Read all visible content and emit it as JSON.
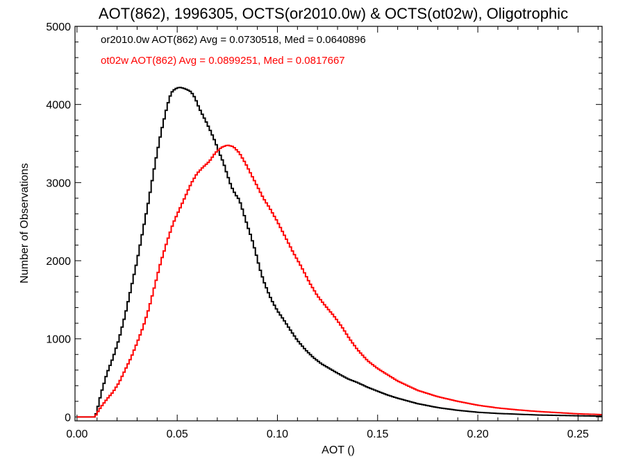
{
  "chart_data": {
    "type": "line",
    "title": "AOT(862), 1996305, OCTS(or2010.0w) & OCTS(ot02w), Oligotrophic",
    "xlabel": "AOT ()",
    "ylabel": "Number of Observations",
    "xlim": [
      -0.001,
      0.262
    ],
    "ylim": [
      -50,
      5000
    ],
    "xticks": [
      0.0,
      0.05,
      0.1,
      0.15,
      0.2,
      0.25
    ],
    "xtick_labels": [
      "0.00",
      "0.05",
      "0.10",
      "0.15",
      "0.20",
      "0.25"
    ],
    "yticks": [
      0,
      1000,
      2000,
      3000,
      4000,
      5000
    ],
    "ytick_labels": [
      "0",
      "1000",
      "2000",
      "3000",
      "4000",
      "5000"
    ],
    "bin_width": 0.001,
    "grid": false,
    "legend_position": "top-left",
    "series": [
      {
        "name": "or2010.0w AOT(862) Avg = 0.0730518, Med = 0.0640896",
        "color": "#000000",
        "style": "step",
        "points": [
          [
            0.0,
            0
          ],
          [
            0.005,
            0
          ],
          [
            0.009,
            0
          ],
          [
            0.01,
            80
          ],
          [
            0.012,
            300
          ],
          [
            0.015,
            560
          ],
          [
            0.018,
            760
          ],
          [
            0.021,
            1000
          ],
          [
            0.024,
            1300
          ],
          [
            0.027,
            1650
          ],
          [
            0.03,
            2000
          ],
          [
            0.033,
            2400
          ],
          [
            0.036,
            2800
          ],
          [
            0.039,
            3250
          ],
          [
            0.042,
            3650
          ],
          [
            0.045,
            3980
          ],
          [
            0.047,
            4150
          ],
          [
            0.049,
            4200
          ],
          [
            0.051,
            4220
          ],
          [
            0.053,
            4210
          ],
          [
            0.055,
            4190
          ],
          [
            0.057,
            4160
          ],
          [
            0.059,
            4080
          ],
          [
            0.061,
            3950
          ],
          [
            0.063,
            3850
          ],
          [
            0.065,
            3750
          ],
          [
            0.067,
            3640
          ],
          [
            0.069,
            3520
          ],
          [
            0.071,
            3380
          ],
          [
            0.073,
            3260
          ],
          [
            0.075,
            3100
          ],
          [
            0.077,
            2950
          ],
          [
            0.079,
            2850
          ],
          [
            0.081,
            2780
          ],
          [
            0.083,
            2620
          ],
          [
            0.085,
            2450
          ],
          [
            0.087,
            2300
          ],
          [
            0.089,
            2120
          ],
          [
            0.091,
            1920
          ],
          [
            0.093,
            1750
          ],
          [
            0.095,
            1620
          ],
          [
            0.097,
            1500
          ],
          [
            0.1,
            1360
          ],
          [
            0.103,
            1250
          ],
          [
            0.106,
            1130
          ],
          [
            0.11,
            980
          ],
          [
            0.114,
            860
          ],
          [
            0.118,
            760
          ],
          [
            0.122,
            680
          ],
          [
            0.126,
            620
          ],
          [
            0.13,
            560
          ],
          [
            0.135,
            490
          ],
          [
            0.14,
            440
          ],
          [
            0.145,
            380
          ],
          [
            0.15,
            330
          ],
          [
            0.155,
            280
          ],
          [
            0.16,
            240
          ],
          [
            0.17,
            170
          ],
          [
            0.18,
            120
          ],
          [
            0.19,
            85
          ],
          [
            0.2,
            60
          ],
          [
            0.21,
            45
          ],
          [
            0.22,
            35
          ],
          [
            0.23,
            25
          ],
          [
            0.24,
            20
          ],
          [
            0.25,
            15
          ],
          [
            0.262,
            10
          ]
        ]
      },
      {
        "name": "ot02w AOT(862) Avg = 0.0899251, Med = 0.0817667",
        "color": "#ff0000",
        "style": "step",
        "points": [
          [
            0.0,
            0
          ],
          [
            0.009,
            0
          ],
          [
            0.01,
            50
          ],
          [
            0.012,
            130
          ],
          [
            0.015,
            230
          ],
          [
            0.018,
            320
          ],
          [
            0.021,
            440
          ],
          [
            0.024,
            600
          ],
          [
            0.027,
            760
          ],
          [
            0.03,
            950
          ],
          [
            0.033,
            1150
          ],
          [
            0.036,
            1400
          ],
          [
            0.039,
            1700
          ],
          [
            0.042,
            2000
          ],
          [
            0.045,
            2250
          ],
          [
            0.048,
            2480
          ],
          [
            0.051,
            2650
          ],
          [
            0.054,
            2820
          ],
          [
            0.057,
            2990
          ],
          [
            0.06,
            3120
          ],
          [
            0.063,
            3200
          ],
          [
            0.066,
            3270
          ],
          [
            0.069,
            3380
          ],
          [
            0.072,
            3450
          ],
          [
            0.075,
            3480
          ],
          [
            0.078,
            3460
          ],
          [
            0.081,
            3380
          ],
          [
            0.084,
            3250
          ],
          [
            0.087,
            3100
          ],
          [
            0.09,
            2950
          ],
          [
            0.093,
            2800
          ],
          [
            0.096,
            2680
          ],
          [
            0.1,
            2500
          ],
          [
            0.104,
            2300
          ],
          [
            0.108,
            2100
          ],
          [
            0.112,
            1920
          ],
          [
            0.116,
            1720
          ],
          [
            0.12,
            1550
          ],
          [
            0.124,
            1420
          ],
          [
            0.128,
            1300
          ],
          [
            0.132,
            1160
          ],
          [
            0.136,
            1000
          ],
          [
            0.14,
            860
          ],
          [
            0.145,
            720
          ],
          [
            0.15,
            620
          ],
          [
            0.155,
            540
          ],
          [
            0.16,
            460
          ],
          [
            0.165,
            400
          ],
          [
            0.17,
            340
          ],
          [
            0.175,
            300
          ],
          [
            0.18,
            260
          ],
          [
            0.19,
            200
          ],
          [
            0.2,
            150
          ],
          [
            0.21,
            115
          ],
          [
            0.22,
            90
          ],
          [
            0.23,
            70
          ],
          [
            0.24,
            55
          ],
          [
            0.25,
            40
          ],
          [
            0.262,
            30
          ]
        ]
      }
    ]
  }
}
